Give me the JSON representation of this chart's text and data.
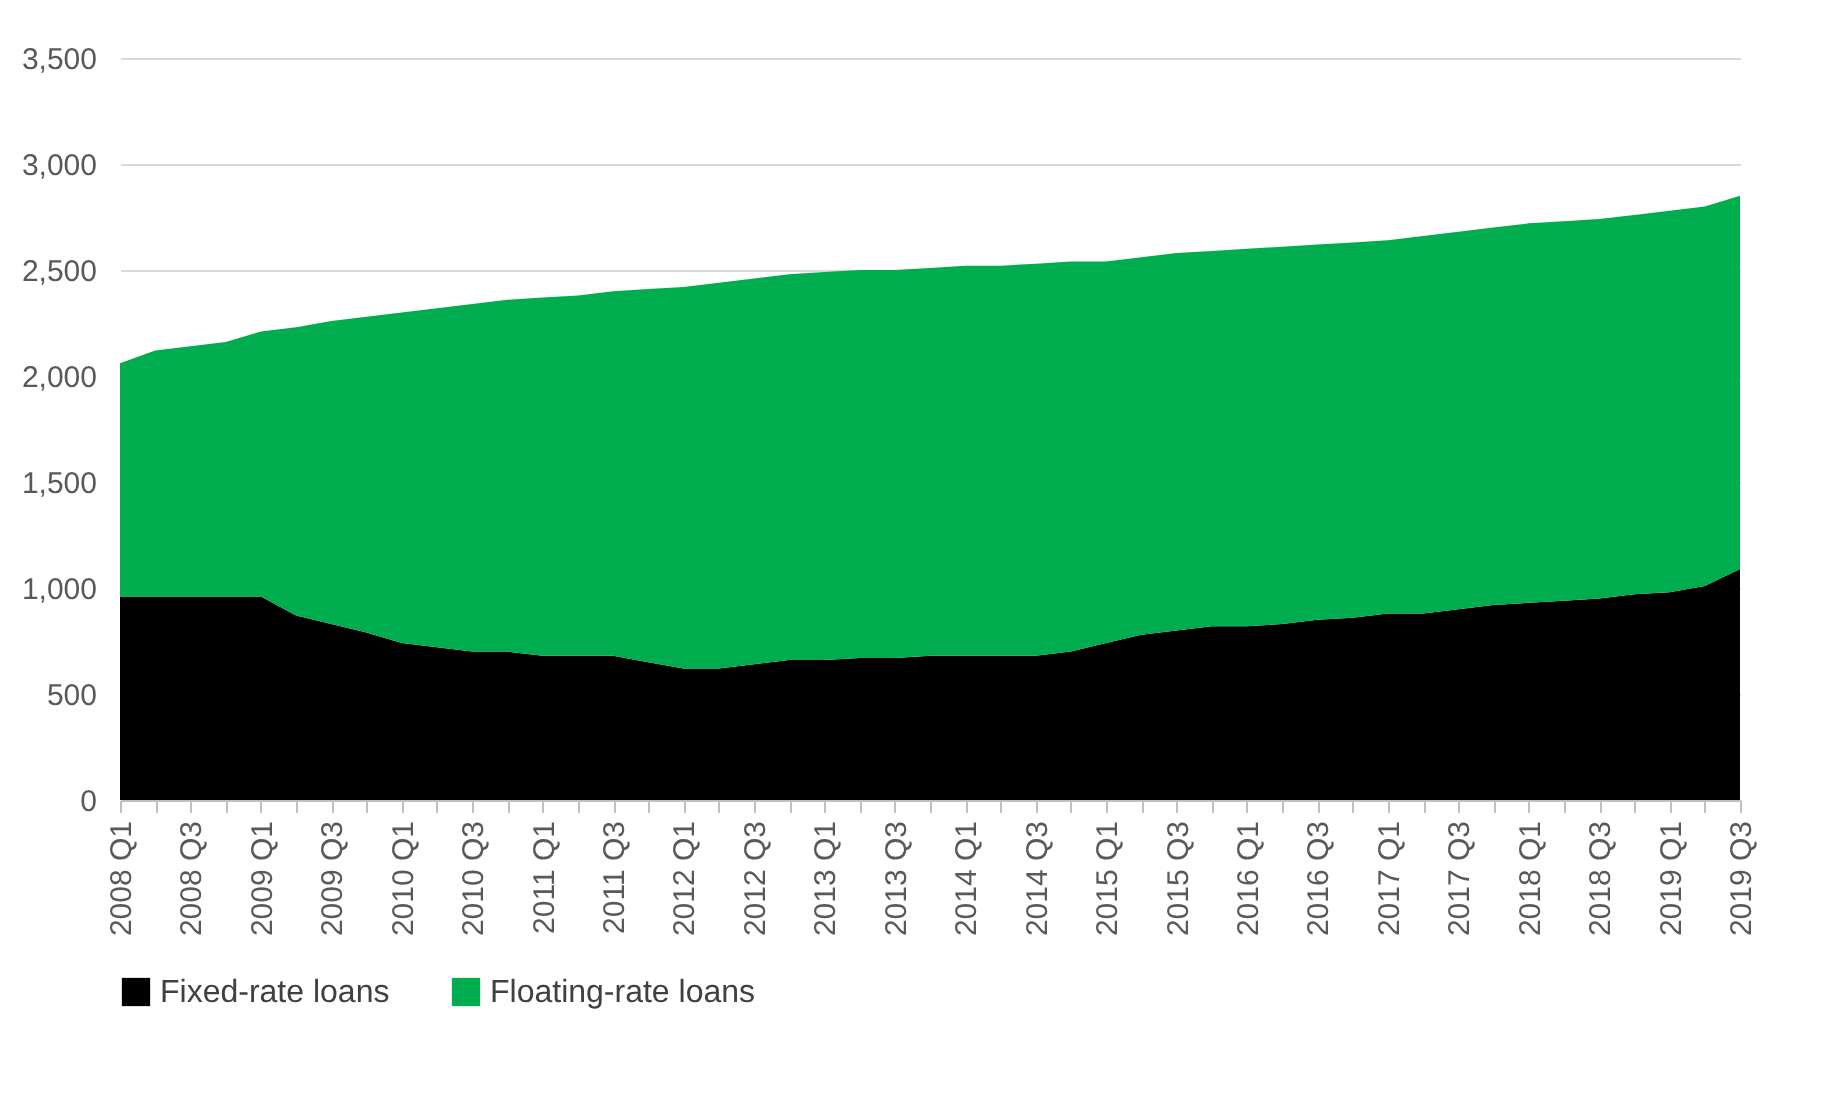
{
  "chart_data": {
    "type": "area",
    "stacked": true,
    "categories": [
      "2008 Q1",
      null,
      "2008 Q3",
      null,
      "2009 Q1",
      null,
      "2009 Q3",
      null,
      "2010 Q1",
      null,
      "2010 Q3",
      null,
      "2011 Q1",
      null,
      "2011 Q3",
      null,
      "2012 Q1",
      null,
      "2012 Q3",
      null,
      "2013 Q1",
      null,
      "2013 Q3",
      null,
      "2014 Q1",
      null,
      "2014 Q3",
      null,
      "2015 Q1",
      null,
      "2015 Q3",
      null,
      "2016 Q1",
      null,
      "2016 Q3",
      null,
      "2017 Q1",
      null,
      "2017 Q3",
      null,
      "2018 Q1",
      null,
      "2018 Q3",
      null,
      "2019 Q1",
      null,
      "2019 Q3"
    ],
    "series": [
      {
        "name": "Fixed-rate loans",
        "color": "#000000",
        "values": [
          960,
          960,
          960,
          960,
          960,
          870,
          830,
          790,
          740,
          720,
          700,
          700,
          680,
          680,
          680,
          650,
          620,
          620,
          640,
          660,
          660,
          670,
          670,
          680,
          680,
          680,
          680,
          700,
          740,
          780,
          800,
          820,
          820,
          830,
          850,
          860,
          880,
          880,
          900,
          920,
          930,
          940,
          950,
          970,
          980,
          1010,
          1090
        ]
      },
      {
        "name": "Floating-rate loans",
        "color": "#00ad4e",
        "values": [
          1100,
          1160,
          1180,
          1200,
          1250,
          1360,
          1430,
          1490,
          1560,
          1600,
          1640,
          1660,
          1690,
          1700,
          1720,
          1760,
          1800,
          1820,
          1820,
          1820,
          1830,
          1830,
          1830,
          1830,
          1840,
          1840,
          1850,
          1840,
          1800,
          1780,
          1780,
          1770,
          1780,
          1780,
          1770,
          1770,
          1760,
          1780,
          1780,
          1780,
          1790,
          1790,
          1790,
          1790,
          1800,
          1790,
          1760
        ]
      }
    ],
    "ylim": [
      0,
      3500
    ],
    "yticks": [
      0,
      500,
      {
        "value": 1000,
        "label": "1,000"
      },
      {
        "value": 1500,
        "label": "1,500"
      },
      {
        "value": 2000,
        "label": "2,000"
      },
      {
        "value": 2500,
        "label": "2,500"
      },
      {
        "value": 3000,
        "label": "3,000"
      },
      {
        "value": 3500,
        "label": "3,500"
      }
    ],
    "grid": "y",
    "legend": "bottom"
  }
}
